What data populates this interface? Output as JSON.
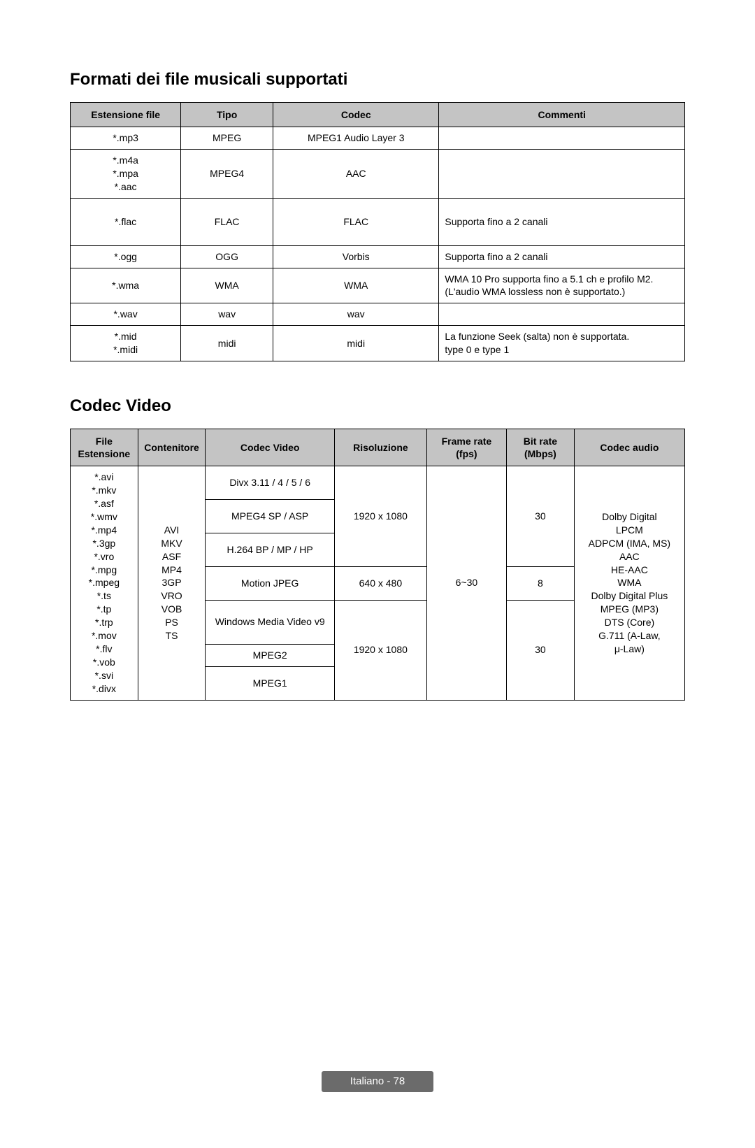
{
  "colors": {
    "header_bg": "#c4c4c4",
    "border": "#000000",
    "text": "#000000",
    "footer_bg": "#6b6b6b",
    "footer_text": "#ffffff",
    "page_bg": "#ffffff"
  },
  "typography": {
    "title_fontsize_pt": 18,
    "body_fontsize_pt": 10,
    "footer_fontsize_pt": 11,
    "title_weight": "bold",
    "header_weight": "bold"
  },
  "music": {
    "title": "Formati dei file musicali supportati",
    "headers": {
      "ext": "Estensione file",
      "type": "Tipo",
      "codec": "Codec",
      "comments": "Commenti"
    },
    "rows": [
      {
        "ext": "*.mp3",
        "type": "MPEG",
        "codec": "MPEG1 Audio Layer 3",
        "comments": ""
      },
      {
        "ext": "*.m4a\n*.mpa\n*.aac",
        "type": "MPEG4",
        "codec": "AAC",
        "comments": ""
      },
      {
        "ext": "*.flac",
        "type": "FLAC",
        "codec": "FLAC",
        "comments": "Supporta fino a 2 canali"
      },
      {
        "ext": "*.ogg",
        "type": "OGG",
        "codec": "Vorbis",
        "comments": "Supporta fino a 2 canali"
      },
      {
        "ext": "*.wma",
        "type": "WMA",
        "codec": "WMA",
        "comments": "WMA 10 Pro supporta fino a 5.1 ch e profilo M2.\n(L'audio WMA lossless non è supportato.)"
      },
      {
        "ext": "*.wav",
        "type": "wav",
        "codec": "wav",
        "comments": ""
      },
      {
        "ext": "*.mid\n*.midi",
        "type": "midi",
        "codec": "midi",
        "comments": "La funzione Seek (salta) non è supportata.\ntype 0 e type 1"
      }
    ]
  },
  "video": {
    "title": "Codec Video",
    "headers": {
      "ext": "File\nEstensione",
      "container": "Contenitore",
      "vcodec": "Codec Video",
      "resolution": "Risoluzione",
      "framerate": "Frame rate\n(fps)",
      "bitrate": "Bit rate\n(Mbps)",
      "acodec": "Codec audio"
    },
    "ext_list": "*.avi\n*.mkv\n*.asf\n*.wmv\n*.mp4\n*.3gp\n*.vro\n*.mpg\n*.mpeg\n*.ts\n*.tp\n*.trp\n*.mov\n*.flv\n*.vob\n*.svi\n*.divx",
    "container_list": "AVI\nMKV\nASF\nMP4\n3GP\nVRO\nVOB\nPS\nTS",
    "codecs": {
      "r1": "Divx 3.11 / 4 / 5 / 6",
      "r2": "MPEG4 SP / ASP",
      "r3": "H.264 BP / MP / HP",
      "r4": "Motion JPEG",
      "r5": "Windows Media Video v9",
      "r6": "MPEG2",
      "r7": "MPEG1"
    },
    "res": {
      "a": "1920 x 1080",
      "b": "640 x 480",
      "c": "1920 x 1080"
    },
    "fps": "6~30",
    "bitrate": {
      "a": "30",
      "b": "8",
      "c": "30"
    },
    "acodec": "Dolby Digital\nLPCM\nADPCM (IMA, MS)\nAAC\nHE-AAC\nWMA\nDolby Digital Plus\nMPEG (MP3)\nDTS (Core)\nG.711 (A-Law,\nμ-Law)"
  },
  "footer": "Italiano - 78"
}
